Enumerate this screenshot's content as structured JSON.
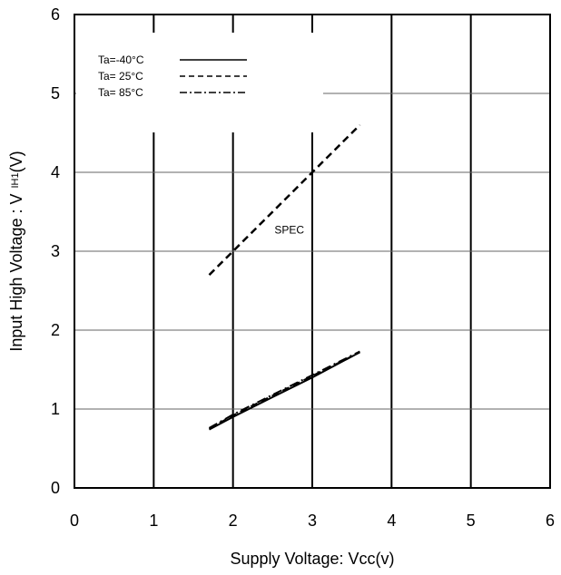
{
  "chart_data": {
    "type": "line",
    "xlabel": "Supply Voltage: Vcc(v)",
    "ylabel": {
      "main": "Input High Voltage : V",
      "subscript": "IH1",
      "unit": "(V)"
    },
    "xlim": [
      0,
      6
    ],
    "ylim": [
      0,
      6
    ],
    "xticks": [
      "0",
      "1",
      "2",
      "3",
      "4",
      "5",
      "6"
    ],
    "yticks": [
      "0",
      "1",
      "2",
      "3",
      "4",
      "5",
      "6"
    ],
    "grid": true,
    "legend": {
      "placement": "top-left",
      "entries": [
        {
          "label": "Ta=-40°C",
          "style": "solid"
        },
        {
          "label": "Ta= 25°C",
          "style": "dashed"
        },
        {
          "label": "Ta= 85°C",
          "style": "dashdot"
        }
      ]
    },
    "series": [
      {
        "name": "Ta=-40°C",
        "style": "solid",
        "x": [
          1.7,
          2.0,
          2.5,
          3.0,
          3.6
        ],
        "y": [
          0.74,
          0.9,
          1.15,
          1.4,
          1.72
        ]
      },
      {
        "name": "Ta= 25°C",
        "style": "dashed",
        "x": [
          1.7,
          2.0,
          2.5,
          3.0,
          3.6
        ],
        "y": [
          0.75,
          0.92,
          1.17,
          1.42,
          1.72
        ]
      },
      {
        "name": "Ta= 85°C",
        "style": "dashdot",
        "x": [
          1.7,
          2.0,
          2.5,
          3.0,
          3.6
        ],
        "y": [
          0.76,
          0.93,
          1.18,
          1.43,
          1.73
        ]
      }
    ],
    "spec_line": {
      "x": [
        1.7,
        2.0,
        3.0,
        3.6
      ],
      "y": [
        2.7,
        3.0,
        4.0,
        4.6
      ],
      "style": "dashed"
    },
    "annotations": [
      {
        "text": "SPEC",
        "x": 2.5,
        "y": 3.2
      }
    ]
  }
}
